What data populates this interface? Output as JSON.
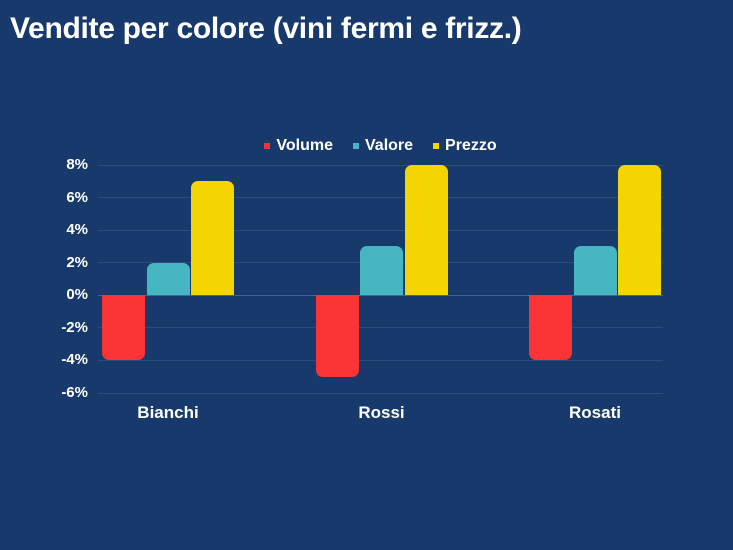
{
  "page": {
    "background_color": "#17396B",
    "text_color": "#FFFFFF"
  },
  "chart_data": {
    "type": "bar",
    "title": "Vendite per colore (vini fermi e frizz.)",
    "categories": [
      "Bianchi",
      "Rossi",
      "Rosati"
    ],
    "series": [
      {
        "name": "Volume",
        "color": "#FA3434",
        "values": [
          -4,
          -5,
          -4
        ]
      },
      {
        "name": "Valore",
        "color": "#47B6C3",
        "values": [
          2,
          3,
          3
        ]
      },
      {
        "name": "Prezzo",
        "color": "#F4D503",
        "values": [
          7,
          8,
          8
        ]
      }
    ],
    "y_axis": {
      "min": -6,
      "max": 8,
      "step": 2,
      "unit": "%",
      "tick_labels": [
        "8%",
        "6%",
        "4%",
        "2%",
        "0%",
        "-2%",
        "-4%",
        "-6%"
      ]
    },
    "grid": true,
    "legend_position": "top-center",
    "xlabel": "",
    "ylabel": ""
  }
}
